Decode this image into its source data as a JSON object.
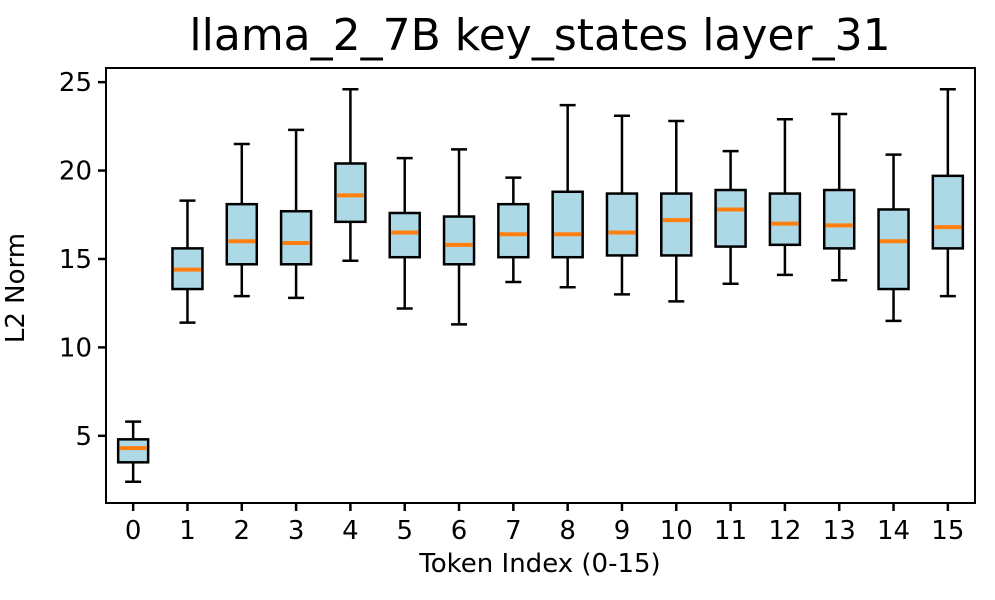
{
  "chart_data": {
    "type": "boxplot",
    "title": "llama_2_7B key_states layer_31",
    "xlabel": "Token Index (0-15)",
    "ylabel": "L2 Norm",
    "categories": [
      "0",
      "1",
      "2",
      "3",
      "4",
      "5",
      "6",
      "7",
      "8",
      "9",
      "10",
      "11",
      "12",
      "13",
      "14",
      "15"
    ],
    "yticks": [
      5,
      10,
      15,
      20,
      25
    ],
    "ylim": [
      1.2,
      25.8
    ],
    "grid": false,
    "legend": null,
    "boxes": [
      {
        "label": "0",
        "whislo": 2.4,
        "q1": 3.5,
        "med": 4.3,
        "q3": 4.8,
        "whishi": 5.8
      },
      {
        "label": "1",
        "whislo": 11.4,
        "q1": 13.3,
        "med": 14.4,
        "q3": 15.6,
        "whishi": 18.3
      },
      {
        "label": "2",
        "whislo": 12.9,
        "q1": 14.7,
        "med": 16.0,
        "q3": 18.1,
        "whishi": 21.5
      },
      {
        "label": "3",
        "whislo": 12.8,
        "q1": 14.7,
        "med": 15.9,
        "q3": 17.7,
        "whishi": 22.3
      },
      {
        "label": "4",
        "whislo": 14.9,
        "q1": 17.1,
        "med": 18.6,
        "q3": 20.4,
        "whishi": 24.6
      },
      {
        "label": "5",
        "whislo": 12.2,
        "q1": 15.1,
        "med": 16.5,
        "q3": 17.6,
        "whishi": 20.7
      },
      {
        "label": "6",
        "whislo": 11.3,
        "q1": 14.7,
        "med": 15.8,
        "q3": 17.4,
        "whishi": 21.2
      },
      {
        "label": "7",
        "whislo": 13.7,
        "q1": 15.1,
        "med": 16.4,
        "q3": 18.1,
        "whishi": 19.6
      },
      {
        "label": "8",
        "whislo": 13.4,
        "q1": 15.1,
        "med": 16.4,
        "q3": 18.8,
        "whishi": 23.7
      },
      {
        "label": "9",
        "whislo": 13.0,
        "q1": 15.2,
        "med": 16.5,
        "q3": 18.7,
        "whishi": 23.1
      },
      {
        "label": "10",
        "whislo": 12.6,
        "q1": 15.2,
        "med": 17.2,
        "q3": 18.7,
        "whishi": 22.8
      },
      {
        "label": "11",
        "whislo": 13.6,
        "q1": 15.7,
        "med": 17.8,
        "q3": 18.9,
        "whishi": 21.1
      },
      {
        "label": "12",
        "whislo": 14.1,
        "q1": 15.8,
        "med": 17.0,
        "q3": 18.7,
        "whishi": 22.9
      },
      {
        "label": "13",
        "whislo": 13.8,
        "q1": 15.6,
        "med": 16.9,
        "q3": 18.9,
        "whishi": 23.2
      },
      {
        "label": "14",
        "whislo": 11.5,
        "q1": 13.3,
        "med": 16.0,
        "q3": 17.8,
        "whishi": 20.9
      },
      {
        "label": "15",
        "whislo": 12.9,
        "q1": 15.6,
        "med": 16.8,
        "q3": 19.7,
        "whishi": 24.6
      }
    ],
    "colors": {
      "box_fill": "#ADD8E6",
      "box_edge": "#000000",
      "median": "#FF7F0E",
      "axis": "#000000",
      "background": "#FFFFFF"
    }
  }
}
